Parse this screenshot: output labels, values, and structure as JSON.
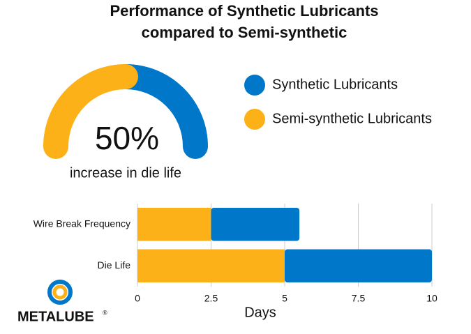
{
  "title": [
    "Performance of Synthetic Lubricants",
    "compared to Semi-synthetic"
  ],
  "chart_data": [
    {
      "type": "gauge",
      "values": [
        50
      ],
      "value_labels": [
        "50%"
      ],
      "ylim": [
        0,
        100
      ],
      "caption": "increase in die life",
      "color": "#fbb117",
      "track_color": "#0077c8"
    },
    {
      "type": "stacked-barh",
      "categories": [
        "Wire Break Frequency",
        "Die Life"
      ],
      "series": [
        {
          "name": "Semi-synthetic Lubricants",
          "color": "#fbb117",
          "values": [
            2.5,
            5
          ]
        },
        {
          "name": "Synthetic Lubricants",
          "color": "#0077c8",
          "values": [
            3,
            5
          ]
        }
      ],
      "legend_order": [
        1,
        0
      ],
      "xlim": [
        0,
        10
      ],
      "xticks": [
        0,
        2.5,
        5,
        7.5,
        10
      ],
      "xlabel": "Days",
      "grid": true
    }
  ],
  "logo": {
    "text": "METALUBE",
    "mark": "®"
  }
}
